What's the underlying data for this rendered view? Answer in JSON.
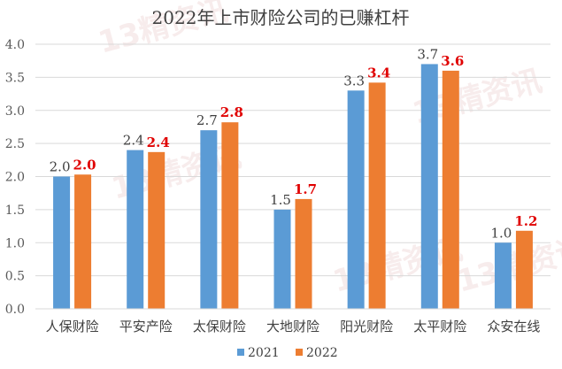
{
  "chart_data": {
    "type": "bar",
    "title": "2022年上市财险公司的已赚杠杆",
    "categories": [
      "人保财险",
      "平安产险",
      "太保财险",
      "大地财险",
      "阳光财险",
      "太平财险",
      "众安在线"
    ],
    "series": [
      {
        "name": "2021",
        "values": [
          2.0,
          2.4,
          2.7,
          1.5,
          3.3,
          3.7,
          1.0
        ],
        "labels": [
          "2.0",
          "2.4",
          "2.7",
          "1.5",
          "3.3",
          "3.7",
          "1.0"
        ],
        "color": "#5b9bd5"
      },
      {
        "name": "2022",
        "values": [
          2.03,
          2.37,
          2.82,
          1.66,
          3.42,
          3.6,
          1.18
        ],
        "labels": [
          "2.0",
          "2.4",
          "2.8",
          "1.7",
          "3.4",
          "3.6",
          "1.2"
        ],
        "color": "#ed7d31"
      }
    ],
    "yticks": [
      "0.0",
      "0.5",
      "1.0",
      "1.5",
      "2.0",
      "2.5",
      "3.0",
      "3.5",
      "4.0"
    ],
    "ylim": [
      0,
      4.0
    ],
    "xlabel": "",
    "ylabel": "",
    "grid": true,
    "legend_position": "bottom",
    "label_color_2022": "#e00000",
    "axis_color": "#d9d9d9",
    "watermark": "13精资讯"
  }
}
